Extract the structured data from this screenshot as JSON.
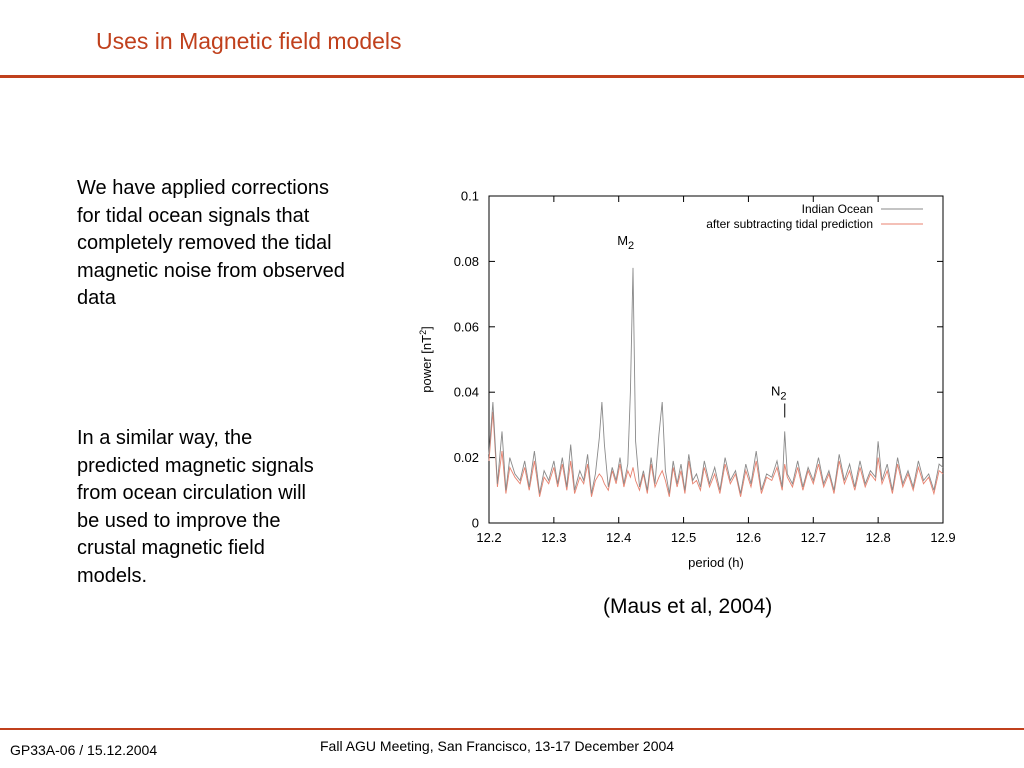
{
  "slide": {
    "title": "Uses in Magnetic field models",
    "paragraph1": [
      "We have applied corrections",
      "for tidal ocean signals that",
      "completely removed the tidal",
      "magnetic noise from observed",
      "data"
    ],
    "paragraph2": [
      "In a similar way, the",
      "predicted magnetic signals",
      "from ocean circulation will",
      "be used to improve the",
      "crustal magnetic field",
      "models."
    ],
    "citation": "(Maus et al, 2004)",
    "footer_left": "GP33A-06 / 15.12.2004",
    "footer_center": "Fall AGU Meeting, San Francisco, 13-17 December 2004",
    "accent_color": "#c0401c"
  },
  "chart_data": {
    "type": "line",
    "xlabel": "period (h)",
    "ylabel_main": "power [nT",
    "ylabel_sup": "2",
    "ylabel_end": "]",
    "xlim": [
      12.2,
      12.9
    ],
    "ylim": [
      0,
      0.1
    ],
    "xticks": [
      12.2,
      12.3,
      12.4,
      12.5,
      12.6,
      12.7,
      12.8,
      12.9
    ],
    "xtick_labels": [
      "12.2",
      "12.3",
      "12.4",
      "12.5",
      "12.6",
      "12.7",
      "12.8",
      "12.9"
    ],
    "yticks": [
      0,
      0.02,
      0.04,
      0.06,
      0.08,
      0.1
    ],
    "ytick_labels": [
      "0",
      "0.02",
      "0.04",
      "0.06",
      "0.08",
      "0.1"
    ],
    "grid": false,
    "legend_position": "top-right",
    "annotations": [
      {
        "label": "M",
        "sub": "2",
        "x": 12.42,
        "y": 0.085
      },
      {
        "label": "N",
        "sub": "2",
        "x": 12.656,
        "y": 0.039
      }
    ],
    "series": [
      {
        "name": "Indian Ocean",
        "color": "#8a8a8a",
        "x": [
          12.2,
          12.206,
          12.213,
          12.22,
          12.226,
          12.232,
          12.24,
          12.248,
          12.255,
          12.262,
          12.27,
          12.278,
          12.285,
          12.292,
          12.3,
          12.306,
          12.313,
          12.32,
          12.326,
          12.332,
          12.34,
          12.346,
          12.352,
          12.358,
          12.364,
          12.37,
          12.374,
          12.378,
          12.384,
          12.39,
          12.396,
          12.402,
          12.408,
          12.414,
          12.418,
          12.422,
          12.426,
          12.432,
          12.438,
          12.444,
          12.45,
          12.456,
          12.462,
          12.467,
          12.472,
          12.478,
          12.484,
          12.49,
          12.496,
          12.502,
          12.508,
          12.514,
          12.52,
          12.526,
          12.532,
          12.54,
          12.548,
          12.556,
          12.564,
          12.572,
          12.58,
          12.588,
          12.596,
          12.604,
          12.612,
          12.62,
          12.628,
          12.636,
          12.644,
          12.652,
          12.656,
          12.66,
          12.668,
          12.676,
          12.684,
          12.692,
          12.7,
          12.708,
          12.716,
          12.724,
          12.732,
          12.74,
          12.748,
          12.756,
          12.764,
          12.772,
          12.78,
          12.788,
          12.796,
          12.8,
          12.806,
          12.814,
          12.822,
          12.83,
          12.838,
          12.846,
          12.854,
          12.862,
          12.87,
          12.878,
          12.886,
          12.894,
          12.9
        ],
        "values": [
          0.021,
          0.037,
          0.012,
          0.028,
          0.01,
          0.02,
          0.015,
          0.013,
          0.019,
          0.011,
          0.022,
          0.009,
          0.016,
          0.013,
          0.019,
          0.012,
          0.02,
          0.011,
          0.024,
          0.01,
          0.016,
          0.013,
          0.021,
          0.009,
          0.015,
          0.026,
          0.037,
          0.024,
          0.011,
          0.017,
          0.013,
          0.02,
          0.012,
          0.018,
          0.04,
          0.078,
          0.025,
          0.011,
          0.016,
          0.01,
          0.02,
          0.012,
          0.027,
          0.037,
          0.016,
          0.009,
          0.019,
          0.012,
          0.018,
          0.01,
          0.021,
          0.013,
          0.015,
          0.011,
          0.019,
          0.012,
          0.017,
          0.01,
          0.02,
          0.013,
          0.016,
          0.009,
          0.018,
          0.012,
          0.022,
          0.01,
          0.015,
          0.014,
          0.019,
          0.011,
          0.028,
          0.015,
          0.012,
          0.019,
          0.011,
          0.017,
          0.013,
          0.02,
          0.012,
          0.016,
          0.01,
          0.021,
          0.013,
          0.018,
          0.011,
          0.019,
          0.012,
          0.016,
          0.014,
          0.025,
          0.013,
          0.018,
          0.01,
          0.02,
          0.012,
          0.016,
          0.011,
          0.019,
          0.013,
          0.015,
          0.01,
          0.018,
          0.017
        ]
      },
      {
        "name": "after subtracting tidal prediction",
        "color": "#e8826f",
        "x": [
          12.2,
          12.206,
          12.213,
          12.22,
          12.226,
          12.232,
          12.24,
          12.248,
          12.255,
          12.262,
          12.27,
          12.278,
          12.285,
          12.292,
          12.3,
          12.306,
          12.313,
          12.32,
          12.326,
          12.332,
          12.34,
          12.346,
          12.352,
          12.358,
          12.364,
          12.37,
          12.374,
          12.378,
          12.384,
          12.39,
          12.396,
          12.402,
          12.408,
          12.414,
          12.418,
          12.422,
          12.426,
          12.432,
          12.438,
          12.444,
          12.45,
          12.456,
          12.462,
          12.467,
          12.472,
          12.478,
          12.484,
          12.49,
          12.496,
          12.502,
          12.508,
          12.514,
          12.52,
          12.526,
          12.532,
          12.54,
          12.548,
          12.556,
          12.564,
          12.572,
          12.58,
          12.588,
          12.596,
          12.604,
          12.612,
          12.62,
          12.628,
          12.636,
          12.644,
          12.652,
          12.656,
          12.66,
          12.668,
          12.676,
          12.684,
          12.692,
          12.7,
          12.708,
          12.716,
          12.724,
          12.732,
          12.74,
          12.748,
          12.756,
          12.764,
          12.772,
          12.78,
          12.788,
          12.796,
          12.8,
          12.806,
          12.814,
          12.822,
          12.83,
          12.838,
          12.846,
          12.854,
          12.862,
          12.87,
          12.878,
          12.886,
          12.894,
          12.9
        ],
        "values": [
          0.019,
          0.034,
          0.011,
          0.022,
          0.009,
          0.017,
          0.014,
          0.012,
          0.017,
          0.01,
          0.019,
          0.008,
          0.014,
          0.012,
          0.017,
          0.011,
          0.018,
          0.01,
          0.019,
          0.009,
          0.014,
          0.012,
          0.018,
          0.008,
          0.013,
          0.015,
          0.014,
          0.012,
          0.01,
          0.016,
          0.012,
          0.018,
          0.011,
          0.016,
          0.014,
          0.017,
          0.013,
          0.01,
          0.015,
          0.009,
          0.018,
          0.011,
          0.014,
          0.016,
          0.013,
          0.008,
          0.017,
          0.011,
          0.016,
          0.009,
          0.019,
          0.012,
          0.013,
          0.01,
          0.017,
          0.011,
          0.015,
          0.009,
          0.018,
          0.012,
          0.015,
          0.008,
          0.016,
          0.011,
          0.019,
          0.009,
          0.014,
          0.013,
          0.017,
          0.01,
          0.018,
          0.014,
          0.011,
          0.017,
          0.01,
          0.016,
          0.012,
          0.018,
          0.011,
          0.015,
          0.009,
          0.019,
          0.012,
          0.016,
          0.01,
          0.017,
          0.011,
          0.015,
          0.013,
          0.02,
          0.012,
          0.016,
          0.009,
          0.018,
          0.011,
          0.015,
          0.01,
          0.017,
          0.012,
          0.014,
          0.009,
          0.016,
          0.015
        ]
      }
    ]
  }
}
